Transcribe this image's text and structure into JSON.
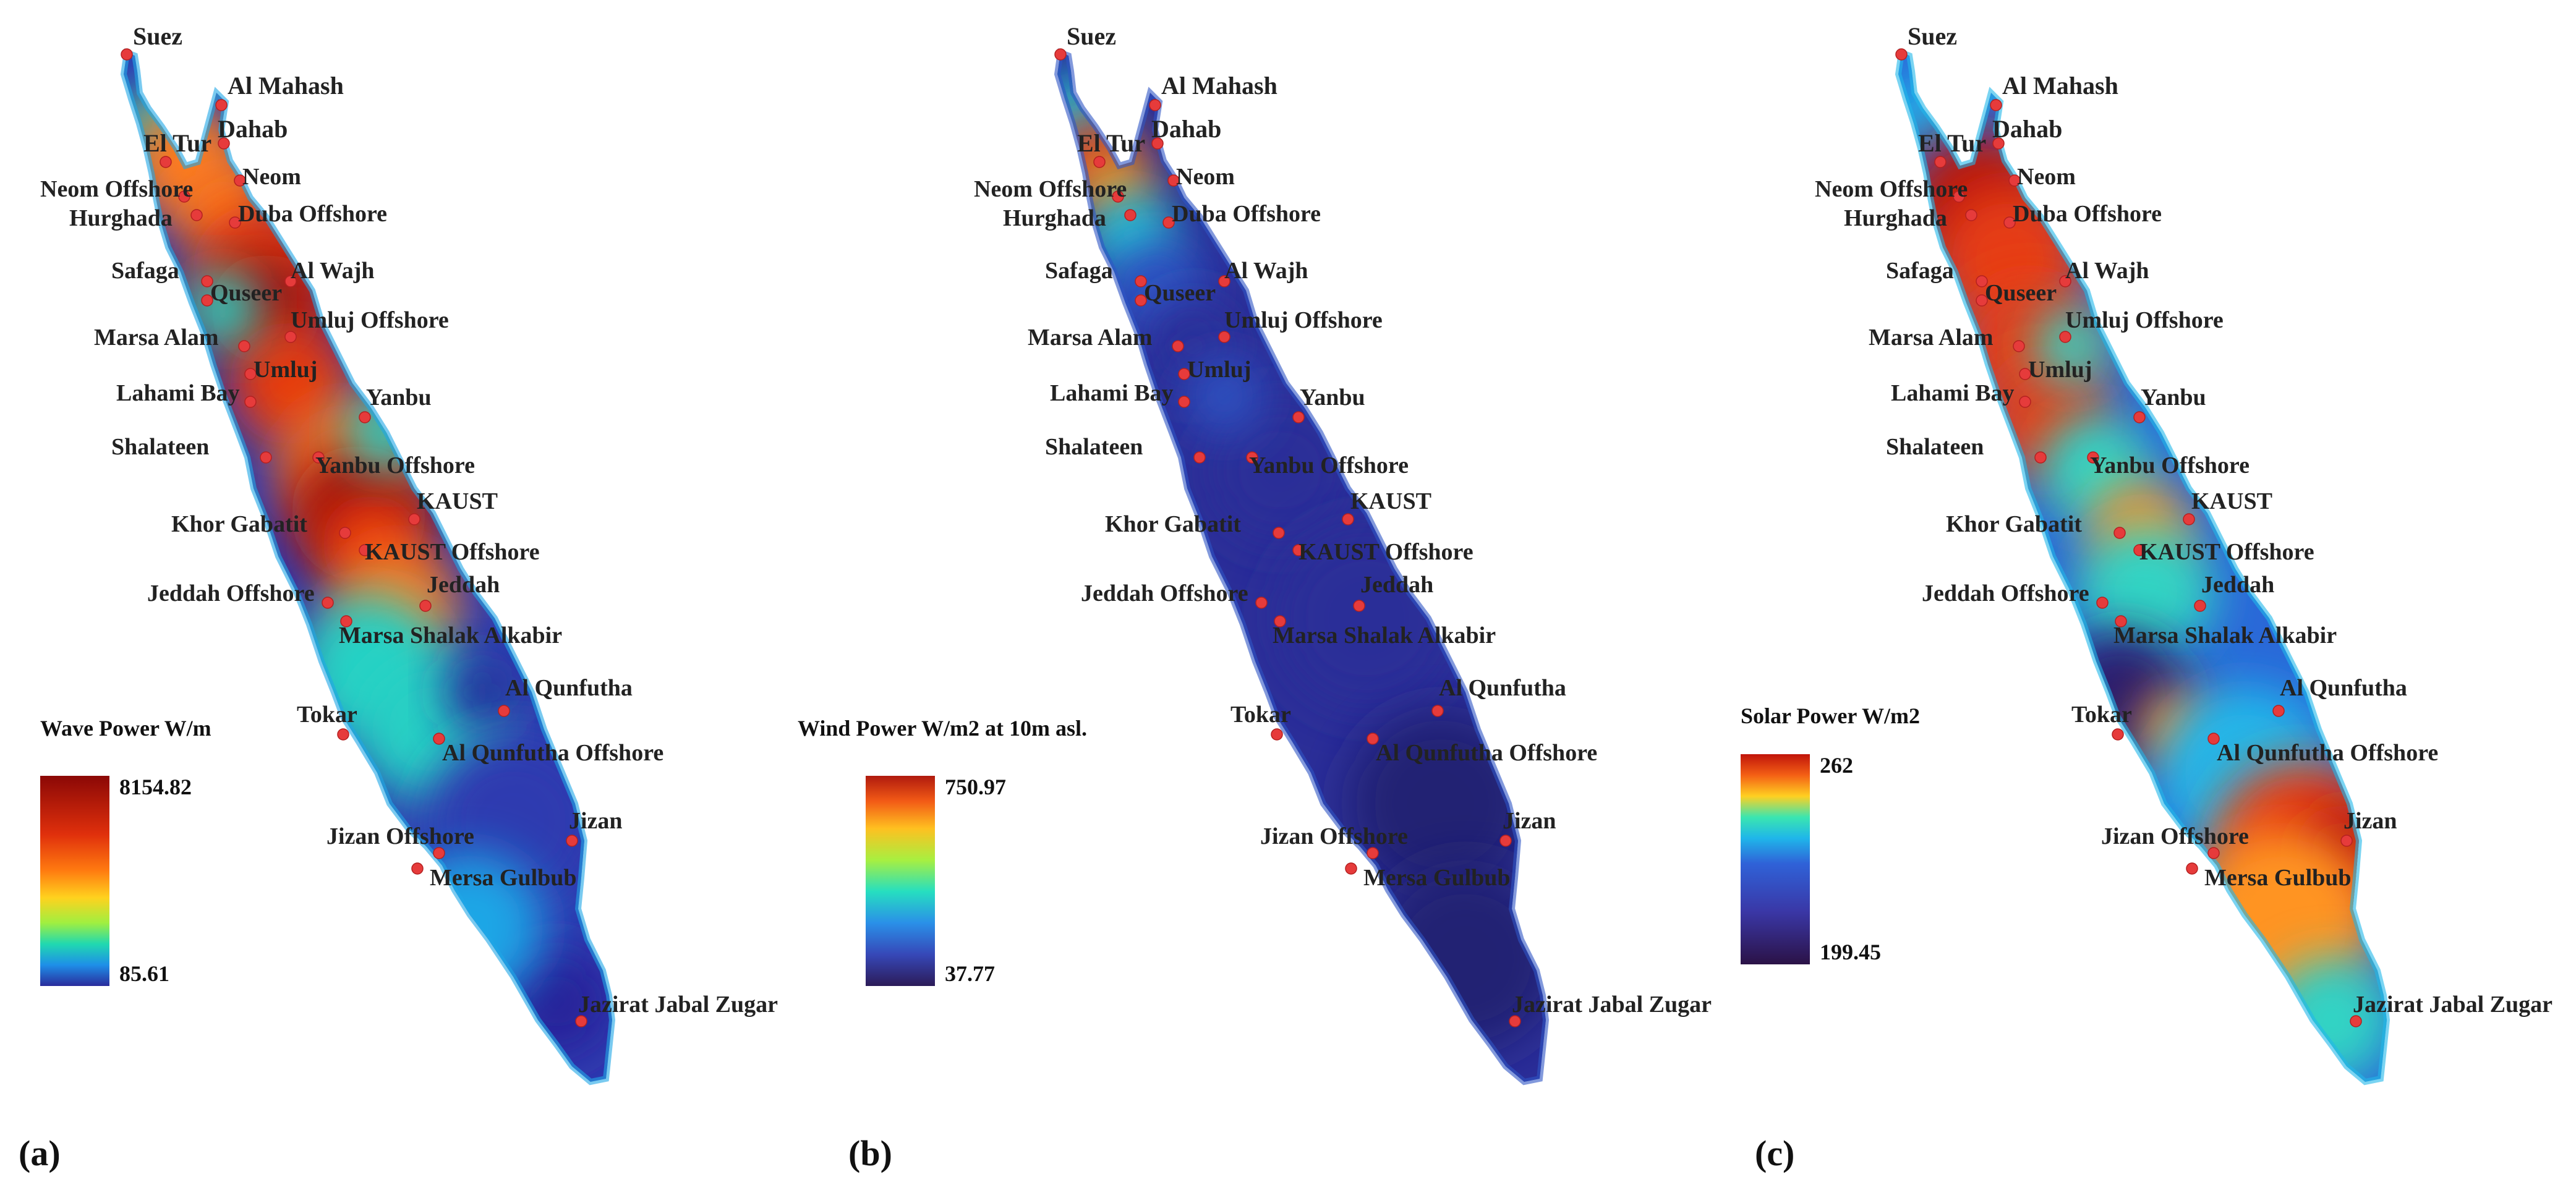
{
  "sites": [
    "Suez",
    "Al Mahash",
    "Dahab",
    "El Tur",
    "Neom",
    "Neom Offshore",
    "Hurghada",
    "Duba Offshore",
    "Safaga",
    "Al Wajh",
    "Quseer",
    "Umluj Offshore",
    "Marsa Alam",
    "Umluj",
    "Lahami Bay",
    "Yanbu",
    "Shalateen",
    "Yanbu Offshore",
    "KAUST",
    "Khor Gabatit",
    "KAUST Offshore",
    "Jeddah",
    "Jeddah Offshore",
    "Marsa Shalak Alkabir",
    "Al Qunfutha",
    "Tokar",
    "Al Qunfutha Offshore",
    "Jizan",
    "Jizan  Offshore",
    "Mersa Gulbub",
    "Jazirat Jabal Zugar"
  ],
  "panels": [
    {
      "id": "a",
      "letter": "(a)",
      "legend": {
        "title": "Wave Power W/m",
        "max": "8154.82",
        "min": "85.61"
      },
      "colors": {
        "base": "#2f3ab0",
        "water_light": "#1fa6e6",
        "mid": "#26d1c4",
        "hot": "#ff7a1a",
        "hotter": "#e53a10",
        "hottest": "#9b0d07",
        "cool": "#26229a"
      }
    },
    {
      "id": "b",
      "letter": "(b)",
      "legend": {
        "title": "Wind Power W/m2 at 10m asl.",
        "max": "750.97",
        "min": "37.77"
      },
      "colors": {
        "base": "#2b2e98",
        "water_light": "#2f55c4",
        "mid": "#24c8d8",
        "hot": "#f39a1c",
        "hotter": "#d8331a",
        "hottest": "#b01a0f",
        "cool": "#232073"
      }
    },
    {
      "id": "c",
      "letter": "(c)",
      "legend": {
        "title": "Solar Power W/m2",
        "max": "262",
        "min": "199.45"
      },
      "colors": {
        "base": "#2a68d8",
        "water_light": "#22b8ea",
        "mid": "#30d4c4",
        "hot": "#ff9420",
        "hotter": "#e63c12",
        "hottest": "#b8140a",
        "cool": "#2a1f6e"
      }
    }
  ]
}
